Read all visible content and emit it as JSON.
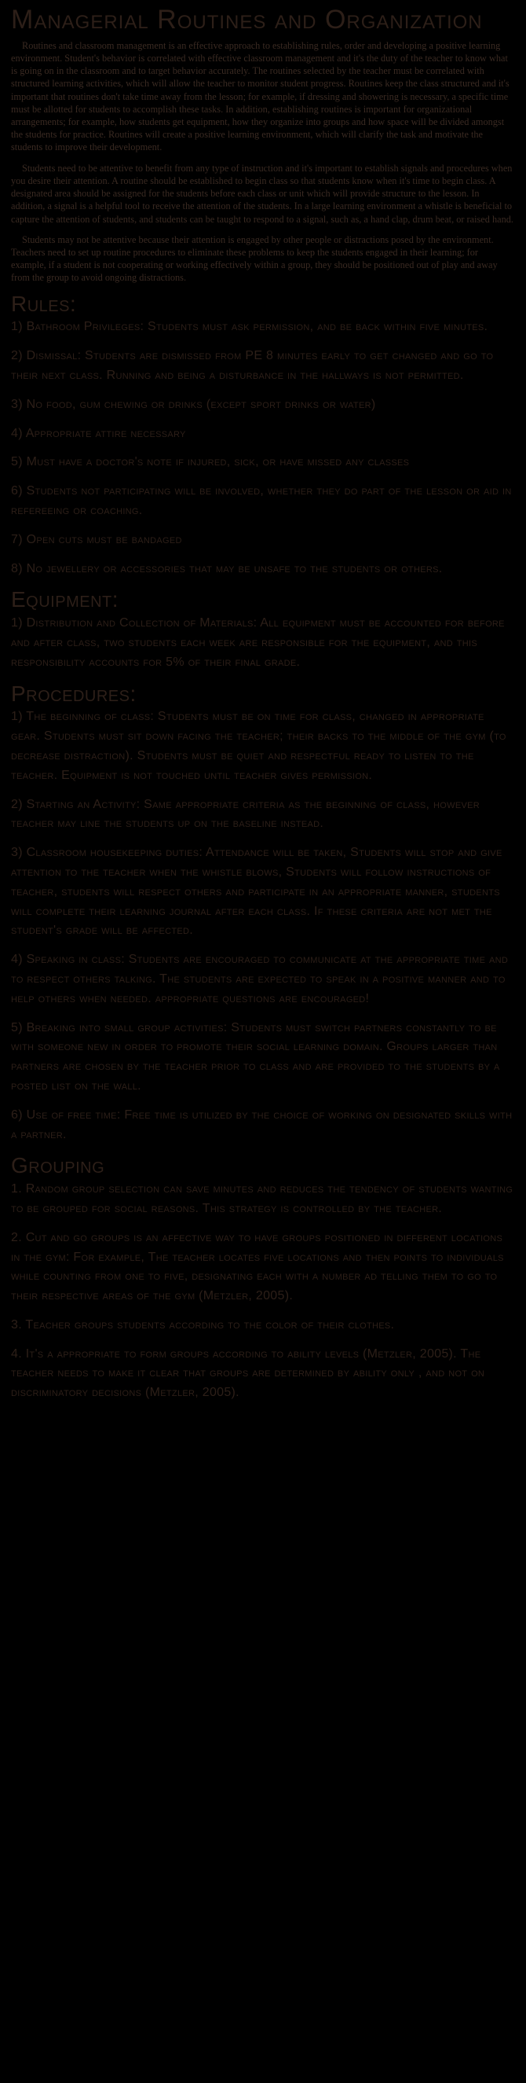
{
  "title": "Managerial Routines and Organization",
  "intro_paragraphs": [
    "Routines and classroom management is an effective approach to establishing rules, order and developing a positive learning environment. Student's behavior is correlated with effective classroom management and it's the duty of the teacher to know what is going on in the classroom and to target behavior accurately. The routines selected by the teacher must be correlated with structured learning activities, which will allow the teacher to monitor student progress. Routines keep the class structured and it's important that routines don't take time away from the lesson; for example, if dressing and showering is necessary, a specific time must be allotted for students to accomplish these tasks. In addition, establishing routines is important for organizational arrangements; for example, how students get equipment, how they organize into groups and how space will be divided amongst the students for practice. Routines will create a positive learning environment, which will clarify the task and motivate the students to improve their development.",
    "Students need to be attentive to benefit from any type of instruction and it's important to establish signals and procedures when you desire their attention. A routine should be established to begin class so that students know when it's time to begin class. A designated area should be assigned for the students before each class or unit which will provide structure to the lesson. In addition, a signal is a helpful tool to receive the attention of the students. In a large learning environment a whistle is beneficial to capture the attention of students, and students can be taught to respond to a signal, such as, a hand clap, drum beat, or raised hand.",
    "Students may not be attentive because their attention is engaged by other people or distractions posed by the environment. Teachers need to set up routine procedures to eliminate these problems to keep the students engaged in their learning; for example, if a student is not cooperating or working effectively within a group, they should be positioned out of play and away from the group to avoid ongoing distractions."
  ],
  "sections": [
    {
      "heading": "Rules:",
      "items": [
        "1) Bathroom Privileges: Students must ask permission, and be back within five minutes.",
        "2) Dismissal: Students are dismissed from PE 8 minutes early to get changed and go to their next class. Running and being a disturbance in the hallways is not permitted.",
        "3) No food, gum chewing or drinks (except sport drinks or water)",
        "4) Appropriate attire necessary",
        "5) Must have a doctor's note if injured, sick, or have missed any classes",
        "6) Students not participating will be involved, whether they do part of the lesson or aid in refereeing or coaching.",
        "7) Open cuts must be bandaged",
        "8) No jewellery or accessories that may be unsafe to the students or others."
      ]
    },
    {
      "heading": "Equipment:",
      "items": [
        "1) Distribution and Collection of Materials: All equipment must be accounted for before and after class, two students each week are responsible for the equipment, and this responsibility accounts for 5% of their final grade."
      ]
    },
    {
      "heading": "Procedures:",
      "items": [
        "1) The beginning of class: Students must be on time for class, changed in appropriate gear. Students must sit down facing the teacher; their backs to the middle of the gym (to decrease distraction). Students must be quiet and respectful ready to listen to the teacher. Equipment is not touched until teacher gives permission.",
        "2)  Starting an Activity: Same appropriate criteria as the beginning of class, however teacher may line the students up on the baseline instead.",
        "3) Classroom housekeeping duties: Attendance will be taken, Students will stop and give attention to the teacher when the whistle blows, Students will follow instructions of teacher, students will respect others and participate in an appropriate manner, students will complete their learning journal after each class. If these criteria are not met the student's grade will be affected.",
        "4) Speaking in class: Students are encouraged to communicate at the appropriate time and to respect others talking. The students are expected to speak in a positive manner and to help others when needed. appropriate questions are encouraged!",
        "5) Breaking into small group activities: Students must switch partners constantly to be with someone new in order to promote their social learning domain.  Groups larger than partners are chosen by the teacher prior to class and are provided to the students by a posted list on the wall.",
        "6) Use of free time: Free time is utilized by the choice of working on designated skills with a partner."
      ]
    },
    {
      "heading": "Grouping",
      "items": [
        "1. Random group selection can save minutes and reduces the tendency of students wanting to be grouped for social reasons. This strategy is controlled by the teacher.",
        "2. Cut and go groups is an affective way to have groups positioned in different locations in the gym: For example, The teacher locates five locations and then points to individuals while counting from one to five, designating each with a number ad telling them to go to their respective areas of the gym (Metzler, 2005).",
        "3. Teacher groups students according to the color of their clothes.",
        "4. It's a appropriate to form groups according to ability levels (Metzler, 2005). The teacher needs to make it clear that groups are determined by ability only , and not on discriminatory decisions (Metzler, 2005)."
      ]
    }
  ]
}
